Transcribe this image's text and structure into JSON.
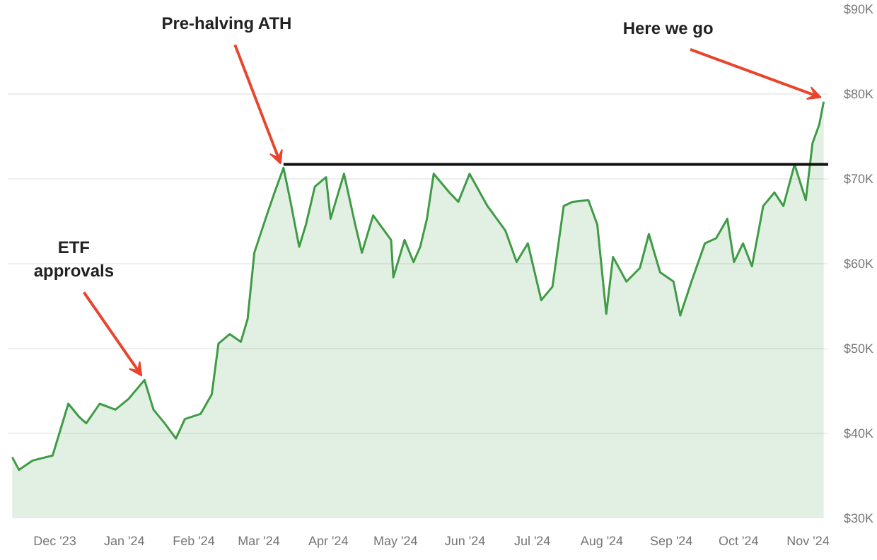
{
  "chart_data": {
    "type": "area",
    "grid": "y",
    "marker": "none",
    "xlim": [
      "2023-11-10",
      "2024-11-10"
    ],
    "ylim": [
      30,
      90
    ],
    "xticks": [
      {
        "value": "2023-12-01",
        "label": "Dec '23"
      },
      {
        "value": "2024-01-01",
        "label": "Jan '24"
      },
      {
        "value": "2024-02-01",
        "label": "Feb '24"
      },
      {
        "value": "2024-03-01",
        "label": "Mar '24"
      },
      {
        "value": "2024-04-01",
        "label": "Apr '24"
      },
      {
        "value": "2024-05-01",
        "label": "May '24"
      },
      {
        "value": "2024-06-01",
        "label": "Jun '24"
      },
      {
        "value": "2024-07-01",
        "label": "Jul '24"
      },
      {
        "value": "2024-08-01",
        "label": "Aug '24"
      },
      {
        "value": "2024-09-01",
        "label": "Sep '24"
      },
      {
        "value": "2024-10-01",
        "label": "Oct '24"
      },
      {
        "value": "2024-11-01",
        "label": "Nov '24"
      }
    ],
    "yticks": [
      {
        "value": 30,
        "label": "$30K"
      },
      {
        "value": 40,
        "label": "$40K"
      },
      {
        "value": 50,
        "label": "$50K"
      },
      {
        "value": 60,
        "label": "$60K"
      },
      {
        "value": 70,
        "label": "$70K"
      },
      {
        "value": 80,
        "label": "$80K"
      },
      {
        "value": 90,
        "label": "$90K"
      }
    ],
    "series": [
      {
        "color": "#3f9b45",
        "x": [
          "2023-11-12",
          "2023-11-15",
          "2023-11-21",
          "2023-11-30",
          "2023-12-07",
          "2023-12-12",
          "2023-12-15",
          "2023-12-21",
          "2023-12-28",
          "2024-01-03",
          "2024-01-10",
          "2024-01-14",
          "2024-01-19",
          "2024-01-24",
          "2024-01-28",
          "2024-02-04",
          "2024-02-09",
          "2024-02-12",
          "2024-02-17",
          "2024-02-22",
          "2024-02-25",
          "2024-02-28",
          "2024-03-04",
          "2024-03-08",
          "2024-03-12",
          "2024-03-15",
          "2024-03-19",
          "2024-03-22",
          "2024-03-26",
          "2024-03-31",
          "2024-04-02",
          "2024-04-08",
          "2024-04-13",
          "2024-04-16",
          "2024-04-21",
          "2024-04-29",
          "2024-04-30",
          "2024-05-05",
          "2024-05-09",
          "2024-05-12",
          "2024-05-15",
          "2024-05-18",
          "2024-05-25",
          "2024-05-29",
          "2024-06-03",
          "2024-06-11",
          "2024-06-19",
          "2024-06-24",
          "2024-06-29",
          "2024-07-05",
          "2024-07-10",
          "2024-07-15",
          "2024-07-19",
          "2024-07-26",
          "2024-07-30",
          "2024-08-03",
          "2024-08-06",
          "2024-08-12",
          "2024-08-18",
          "2024-08-22",
          "2024-08-27",
          "2024-09-02",
          "2024-09-05",
          "2024-09-10",
          "2024-09-16",
          "2024-09-21",
          "2024-09-26",
          "2024-09-29",
          "2024-10-03",
          "2024-10-07",
          "2024-10-12",
          "2024-10-17",
          "2024-10-21",
          "2024-10-26",
          "2024-10-31",
          "2024-11-03",
          "2024-11-06",
          "2024-11-08"
        ],
        "values": [
          37.2,
          35.7,
          36.8,
          37.4,
          43.5,
          41.9,
          41.2,
          43.5,
          42.8,
          44.1,
          46.3,
          42.8,
          41.2,
          39.4,
          41.7,
          42.3,
          44.6,
          50.6,
          51.7,
          50.8,
          53.5,
          61.3,
          65.3,
          68.4,
          71.3,
          67.5,
          62.0,
          64.6,
          69.1,
          70.2,
          65.3,
          70.6,
          64.6,
          61.3,
          65.7,
          62.8,
          58.4,
          62.8,
          60.2,
          62.0,
          65.3,
          70.6,
          68.4,
          67.3,
          70.6,
          66.8,
          63.9,
          60.2,
          62.4,
          55.7,
          57.3,
          66.8,
          67.3,
          67.5,
          64.6,
          54.1,
          60.8,
          57.9,
          59.5,
          63.5,
          59.0,
          57.9,
          53.9,
          57.9,
          62.4,
          63.0,
          65.3,
          60.2,
          62.4,
          59.7,
          66.8,
          68.4,
          66.8,
          71.7,
          67.5,
          74.2,
          76.4,
          79.1
        ]
      },
      {
        "type": "line",
        "color": "#111111",
        "x": [
          "2024-03-12",
          "2024-11-10"
        ],
        "values": [
          71.7,
          71.7
        ]
      }
    ],
    "annotations": [
      {
        "text": "Pre-halving ATH",
        "x": "2024-03-12",
        "y": 71.3
      },
      {
        "text": "ETF approvals",
        "x": "2024-01-10",
        "y": 46.3
      },
      {
        "text": "Here we go",
        "x": "2024-11-08",
        "y": 79.1
      }
    ]
  }
}
